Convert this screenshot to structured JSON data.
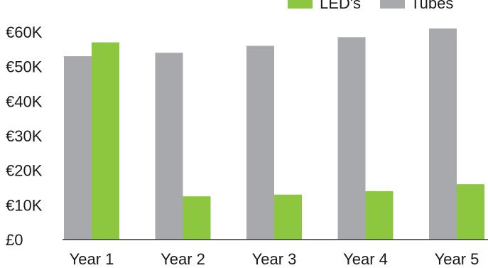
{
  "chart_data": {
    "type": "bar",
    "categories": [
      "Year 1",
      "Year 2",
      "Year 3",
      "Year 4",
      "Year 5"
    ],
    "series": [
      {
        "name": "Tubes",
        "color": "#a7a9ac",
        "values": [
          53,
          54,
          56,
          58.5,
          61
        ]
      },
      {
        "name": "LED's",
        "color": "#8dc63f",
        "values": [
          57,
          12.5,
          13,
          14,
          16
        ]
      }
    ],
    "y_ticks": [
      "£0",
      "€10K",
      "€20K",
      "€30K",
      "€40K",
      "€50K",
      "€60K"
    ],
    "y_tick_values": [
      0,
      10,
      20,
      30,
      40,
      50,
      60
    ],
    "ylim": [
      0,
      60
    ],
    "legend_position": "top-right",
    "grid": false,
    "title": "",
    "xlabel": "",
    "ylabel": ""
  }
}
